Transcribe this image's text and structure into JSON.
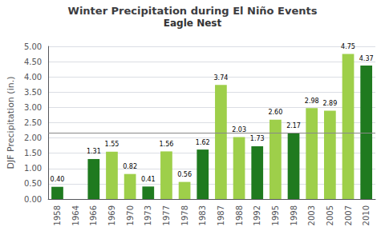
{
  "chart_data": {
    "type": "bar",
    "title": "Winter Precipitation during El Niño Events",
    "subtitle": "Eagle Nest",
    "ylabel": "DJF Precipitation (in.)",
    "categories": [
      "1958",
      "1964",
      "1966",
      "1969",
      "1970",
      "1973",
      "1977",
      "1978",
      "1983",
      "1987",
      "1988",
      "1992",
      "1995",
      "1998",
      "2003",
      "2005",
      "2007",
      "2010"
    ],
    "values": [
      0.4,
      0.0,
      1.31,
      1.55,
      0.82,
      0.41,
      1.56,
      0.56,
      1.62,
      3.74,
      2.03,
      1.73,
      2.6,
      2.17,
      2.98,
      2.89,
      4.75,
      4.37
    ],
    "value_labels": [
      "0.40",
      null,
      "1.31",
      "1.55",
      "0.82",
      "0.41",
      "1.56",
      "0.56",
      "1.62",
      "3.74",
      "2.03",
      "1.73",
      "2.60",
      "2.17",
      "2.98",
      "2.89",
      "4.75",
      "4.37"
    ],
    "colors": [
      "#1f7a1f",
      "#1f7a1f",
      "#1f7a1f",
      "#9ecf4a",
      "#9ecf4a",
      "#1f7a1f",
      "#9ecf4a",
      "#9ecf4a",
      "#1f7a1f",
      "#9ecf4a",
      "#9ecf4a",
      "#1f7a1f",
      "#9ecf4a",
      "#1f7a1f",
      "#9ecf4a",
      "#9ecf4a",
      "#9ecf4a",
      "#1f7a1f"
    ],
    "reference_line": 2.17,
    "data_labels": true,
    "ylim": [
      0,
      5.0
    ],
    "yticks": [
      {
        "value": 0,
        "label": "0.00"
      },
      {
        "value": 0.5,
        "label": "0.50"
      },
      {
        "value": 1.0,
        "label": "1.00"
      },
      {
        "value": 1.5,
        "label": "1.50"
      },
      {
        "value": 2.0,
        "label": "2.00"
      },
      {
        "value": 2.5,
        "label": "2.50"
      },
      {
        "value": 3.0,
        "label": "3.00"
      },
      {
        "value": 3.5,
        "label": "3.50"
      },
      {
        "value": 4.0,
        "label": "4.00"
      },
      {
        "value": 4.5,
        "label": "4.50"
      },
      {
        "value": 5.0,
        "label": "5.00"
      }
    ],
    "grid": true
  }
}
